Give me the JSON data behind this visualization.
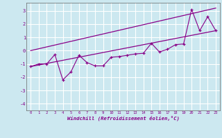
{
  "xlabel": "Windchill (Refroidissement éolien,°C)",
  "bg_color": "#cce8f0",
  "line_color": "#880088",
  "grid_color": "#ffffff",
  "xlim": [
    -0.5,
    23.5
  ],
  "ylim": [
    -4.5,
    3.6
  ],
  "yticks": [
    -4,
    -3,
    -2,
    -1,
    0,
    1,
    2,
    3
  ],
  "xticks": [
    0,
    1,
    2,
    3,
    4,
    5,
    6,
    7,
    8,
    9,
    10,
    11,
    12,
    13,
    14,
    15,
    16,
    17,
    18,
    19,
    20,
    21,
    22,
    23
  ],
  "trend1_x": [
    0,
    23
  ],
  "trend1_y": [
    -1.2,
    1.5
  ],
  "trend2_x": [
    0,
    23
  ],
  "trend2_y": [
    0.0,
    3.2
  ],
  "data_x": [
    0,
    1,
    2,
    3,
    4,
    5,
    6,
    7,
    8,
    9,
    10,
    11,
    12,
    13,
    14,
    15,
    16,
    17,
    18,
    19,
    20,
    21,
    22,
    23
  ],
  "data_y": [
    -1.2,
    -1.0,
    -1.0,
    -0.3,
    -2.2,
    -1.6,
    -0.35,
    -0.9,
    -1.15,
    -1.15,
    -0.5,
    -0.45,
    -0.35,
    -0.25,
    -0.2,
    0.55,
    -0.1,
    0.1,
    0.45,
    0.5,
    3.1,
    1.5,
    2.55,
    1.5
  ]
}
